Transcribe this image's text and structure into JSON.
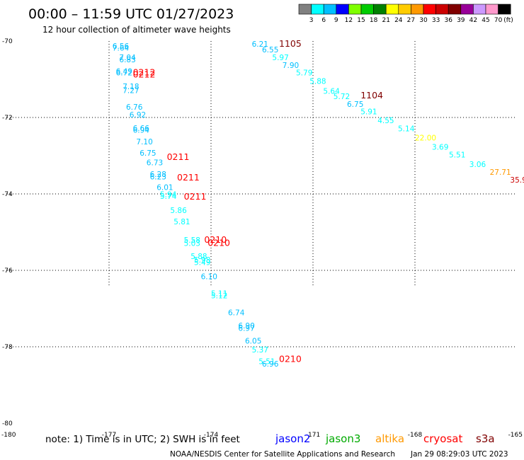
{
  "chart_data": {
    "type": "scatter",
    "title": "00:00 – 11:59 UTC 01/27/2023",
    "subtitle": "12 hour collection of altimeter wave heights",
    "xlim": [
      -180,
      -165
    ],
    "ylim": [
      -80,
      -70
    ],
    "y_ticks": [
      "-70",
      "-72",
      "-74",
      "-76",
      "-78",
      "-80"
    ],
    "x_ticks": [
      "-180",
      "-177",
      "-174",
      "-171",
      "-168",
      "-165"
    ],
    "grid": true,
    "colorbar": {
      "unit_label": "(ft)",
      "levels": [
        "3",
        "6",
        "9",
        "12",
        "15",
        "18",
        "21",
        "24",
        "27",
        "30",
        "33",
        "36",
        "39",
        "42",
        "45",
        "70"
      ],
      "colors": [
        "#808080",
        "#00ffff",
        "#00bfff",
        "#0000ff",
        "#7fff00",
        "#00cc00",
        "#008000",
        "#ffff00",
        "#ffcc00",
        "#ff9900",
        "#ff0000",
        "#cc0000",
        "#800000",
        "#990099",
        "#cc99ff",
        "#ff99cc",
        "#000000"
      ]
    },
    "series": [
      {
        "name": "cryosat",
        "points": [
          {
            "lon": -176.9,
            "lat": -70.2,
            "swh": "6.56"
          },
          {
            "lon": -176.9,
            "lat": -70.25,
            "swh": "7.64"
          },
          {
            "lon": -176.7,
            "lat": -70.5,
            "swh": "7.04"
          },
          {
            "lon": -176.7,
            "lat": -70.56,
            "swh": "6.83"
          },
          {
            "lon": -176.8,
            "lat": -70.86,
            "swh": "6.49"
          },
          {
            "lon": -176.8,
            "lat": -70.9,
            "swh": "6.72"
          },
          {
            "lon": -176.6,
            "lat": -71.26,
            "swh": "7.18"
          },
          {
            "lon": -176.6,
            "lat": -71.36,
            "swh": "7.27"
          },
          {
            "lon": -176.5,
            "lat": -71.8,
            "swh": "6.76"
          },
          {
            "lon": -176.4,
            "lat": -72.0,
            "swh": "6.92"
          },
          {
            "lon": -176.3,
            "lat": -72.35,
            "swh": "6.66"
          },
          {
            "lon": -176.3,
            "lat": -72.4,
            "swh": "6.94"
          },
          {
            "lon": -176.2,
            "lat": -72.7,
            "swh": "7.10"
          },
          {
            "lon": -176.1,
            "lat": -73.0,
            "swh": "6.75"
          },
          {
            "lon": -175.9,
            "lat": -73.25,
            "swh": "6.73"
          },
          {
            "lon": -175.8,
            "lat": -73.56,
            "swh": "6.28"
          },
          {
            "lon": -175.8,
            "lat": -73.62,
            "swh": "6.23"
          },
          {
            "lon": -175.6,
            "lat": -73.9,
            "swh": "6.01"
          },
          {
            "lon": -175.5,
            "lat": -74.08,
            "swh": "5.94"
          },
          {
            "lon": -175.5,
            "lat": -74.13,
            "swh": "5.74"
          },
          {
            "lon": -175.2,
            "lat": -74.5,
            "swh": "5.86"
          },
          {
            "lon": -175.1,
            "lat": -74.8,
            "swh": "5.81"
          },
          {
            "lon": -174.8,
            "lat": -75.28,
            "swh": "5.58"
          },
          {
            "lon": -174.8,
            "lat": -75.36,
            "swh": "5.03"
          },
          {
            "lon": -174.6,
            "lat": -75.7,
            "swh": "5.88"
          },
          {
            "lon": -174.5,
            "lat": -75.8,
            "swh": "5.98"
          },
          {
            "lon": -174.5,
            "lat": -75.86,
            "swh": "5.49"
          },
          {
            "lon": -174.3,
            "lat": -76.23,
            "swh": "6.10"
          },
          {
            "lon": -174.0,
            "lat": -76.68,
            "swh": "5.11"
          },
          {
            "lon": -174.0,
            "lat": -76.73,
            "swh": "5.12"
          },
          {
            "lon": -173.5,
            "lat": -77.18,
            "swh": "6.74"
          },
          {
            "lon": -173.2,
            "lat": -77.52,
            "swh": "6.90"
          },
          {
            "lon": -173.2,
            "lat": -77.58,
            "swh": "6.97"
          },
          {
            "lon": -173.0,
            "lat": -77.92,
            "swh": "6.05"
          },
          {
            "lon": -172.8,
            "lat": -78.15,
            "swh": "5.37"
          },
          {
            "lon": -172.6,
            "lat": -78.45,
            "swh": "5.51"
          },
          {
            "lon": -172.5,
            "lat": -78.52,
            "swh": "6.96"
          }
        ],
        "labels": [
          {
            "lon": -176.3,
            "lat": -70.9,
            "text": "0212"
          },
          {
            "lon": -176.3,
            "lat": -70.95,
            "text": "0212"
          },
          {
            "lon": -175.3,
            "lat": -73.11,
            "text": "0211"
          },
          {
            "lon": -175.0,
            "lat": -73.65,
            "text": "0211"
          },
          {
            "lon": -174.8,
            "lat": -74.15,
            "text": "0211"
          },
          {
            "lon": -174.2,
            "lat": -75.28,
            "text": "0210"
          },
          {
            "lon": -174.1,
            "lat": -75.36,
            "text": "0210"
          },
          {
            "lon": -172.0,
            "lat": -78.4,
            "text": "0210"
          }
        ]
      },
      {
        "name": "s3a",
        "points": [
          {
            "lon": -172.8,
            "lat": -70.15,
            "swh": "6.21"
          },
          {
            "lon": -172.5,
            "lat": -70.3,
            "swh": "6.55"
          },
          {
            "lon": -172.2,
            "lat": -70.5,
            "swh": "5.97"
          },
          {
            "lon": -171.9,
            "lat": -70.7,
            "swh": "7.90"
          },
          {
            "lon": -171.5,
            "lat": -70.9,
            "swh": "5.79"
          },
          {
            "lon": -171.1,
            "lat": -71.12,
            "swh": "5.88"
          },
          {
            "lon": -170.7,
            "lat": -71.38,
            "swh": "5.64"
          },
          {
            "lon": -170.4,
            "lat": -71.52,
            "swh": "5.72"
          },
          {
            "lon": -170.0,
            "lat": -71.72,
            "swh": "6.75"
          },
          {
            "lon": -169.6,
            "lat": -71.92,
            "swh": "5.91"
          },
          {
            "lon": -169.1,
            "lat": -72.15,
            "swh": "4.55"
          },
          {
            "lon": -168.5,
            "lat": -72.36,
            "swh": "5.14"
          },
          {
            "lon": -168.0,
            "lat": -72.6,
            "swh": "22.00"
          },
          {
            "lon": -167.5,
            "lat": -72.84,
            "swh": "3.69"
          },
          {
            "lon": -167.0,
            "lat": -73.05,
            "swh": "5.51"
          },
          {
            "lon": -166.4,
            "lat": -73.3,
            "swh": "3.06"
          },
          {
            "lon": -165.8,
            "lat": -73.5,
            "swh": "27.71"
          },
          {
            "lon": -165.2,
            "lat": -73.7,
            "swh": "35.9"
          }
        ],
        "labels": [
          {
            "lon": -172.0,
            "lat": -70.15,
            "text": "1105"
          },
          {
            "lon": -169.6,
            "lat": -71.5,
            "text": "1104"
          }
        ]
      }
    ],
    "legend": {
      "note": "note: 1) Time is in UTC; 2) SWH is in feet",
      "items": [
        {
          "label": "jason2",
          "color": "#0000ff"
        },
        {
          "label": "jason3",
          "color": "#00aa00"
        },
        {
          "label": "altika",
          "color": "#ff9900"
        },
        {
          "label": "cryosat",
          "color": "#ff0000"
        },
        {
          "label": "s3a",
          "color": "#800000"
        }
      ]
    },
    "footer": "NOAA/NESDIS Center for Satellite Applications and Research",
    "timestamp": "Jan 29 08:29:03 UTC 2023"
  }
}
